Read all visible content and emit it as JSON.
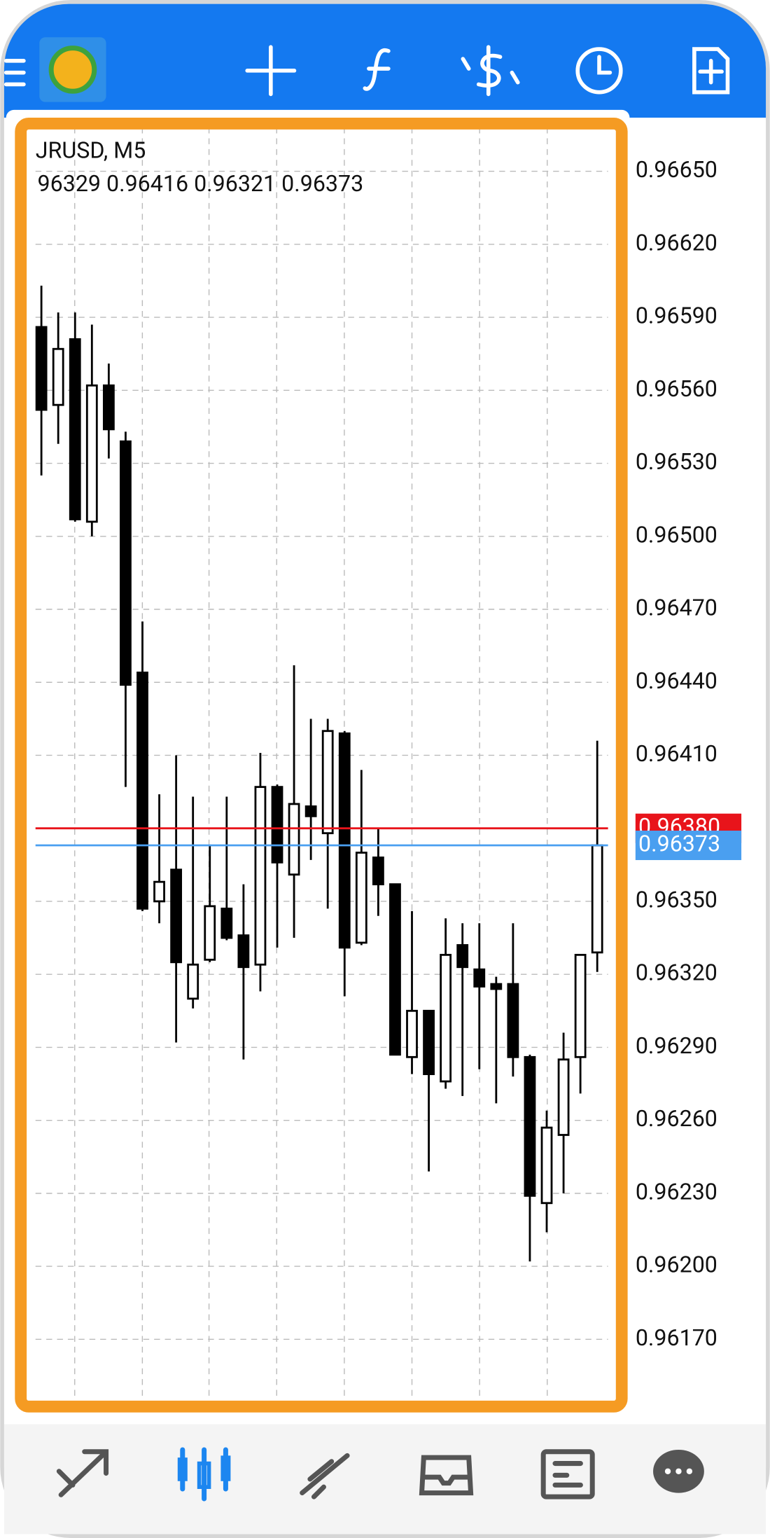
{
  "chart_data": {
    "type": "candlestick",
    "title": "JRUSD, M5",
    "info": "96329 0.96416 0.96321 0.96373",
    "open": [
      0.96586,
      0.96554,
      0.96581,
      0.96506,
      0.96562,
      0.96539,
      0.96444,
      0.9635,
      0.96363,
      0.9631,
      0.96326,
      0.96347,
      0.96336,
      0.96324,
      0.96397,
      0.96361,
      0.96389,
      0.96378,
      0.96419,
      0.96333,
      0.96368,
      0.96357,
      0.96286,
      0.96305,
      0.96276,
      0.96332,
      0.96322,
      0.96316,
      0.96316,
      0.96286,
      0.96226,
      0.96254,
      0.96286,
      0.96329
    ],
    "high": [
      0.96603,
      0.96592,
      0.96592,
      0.96587,
      0.96571,
      0.96543,
      0.96465,
      0.96394,
      0.9641,
      0.96393,
      0.96373,
      0.96393,
      0.96357,
      0.96411,
      0.96398,
      0.96447,
      0.96425,
      0.96425,
      0.9642,
      0.96404,
      0.9638,
      0.96357,
      0.96346,
      0.96305,
      0.96343,
      0.96341,
      0.96341,
      0.96319,
      0.96341,
      0.96287,
      0.96264,
      0.96296,
      0.96328,
      0.96416
    ],
    "low": [
      0.96525,
      0.96538,
      0.96506,
      0.965,
      0.96532,
      0.96397,
      0.96346,
      0.96341,
      0.96292,
      0.96306,
      0.96325,
      0.96334,
      0.96285,
      0.96313,
      0.96331,
      0.96335,
      0.96367,
      0.96347,
      0.96311,
      0.96332,
      0.96344,
      0.96287,
      0.96279,
      0.96239,
      0.96273,
      0.9627,
      0.96281,
      0.96267,
      0.96278,
      0.96202,
      0.96214,
      0.9623,
      0.96271,
      0.96321
    ],
    "close": [
      0.96552,
      0.96577,
      0.96507,
      0.96562,
      0.96544,
      0.96439,
      0.96347,
      0.96358,
      0.96325,
      0.96324,
      0.96348,
      0.96335,
      0.96323,
      0.96397,
      0.96366,
      0.9639,
      0.96385,
      0.9642,
      0.96331,
      0.9637,
      0.96357,
      0.96287,
      0.96305,
      0.96279,
      0.96328,
      0.96323,
      0.96315,
      0.96314,
      0.96286,
      0.96229,
      0.96257,
      0.96285,
      0.96328,
      0.96373
    ],
    "up_color": "#ffffff",
    "down_color": "#000000",
    "ylim": [
      0.96146,
      0.96668
    ],
    "yticks": [
      {
        "value": 0.9665,
        "label": "0.96650"
      },
      {
        "value": 0.9662,
        "label": "0.96620"
      },
      {
        "value": 0.9659,
        "label": "0.96590"
      },
      {
        "value": 0.9656,
        "label": "0.96560"
      },
      {
        "value": 0.9653,
        "label": "0.96530"
      },
      {
        "value": 0.965,
        "label": "0.96500"
      },
      {
        "value": 0.9647,
        "label": "0.96470"
      },
      {
        "value": 0.9644,
        "label": "0.96440"
      },
      {
        "value": 0.9641,
        "label": "0.96410"
      },
      {
        "value": 0.9635,
        "label": "0.96350"
      },
      {
        "value": 0.9632,
        "label": "0.96320"
      },
      {
        "value": 0.9629,
        "label": "0.96290"
      },
      {
        "value": 0.9626,
        "label": "0.96260"
      },
      {
        "value": 0.9623,
        "label": "0.96230"
      },
      {
        "value": 0.962,
        "label": "0.96200"
      },
      {
        "value": 0.9617,
        "label": "0.96170"
      }
    ],
    "grid": true,
    "price_lines": [
      {
        "value": 0.9638,
        "label": "0.96380",
        "color": "#e8141b"
      },
      {
        "value": 0.96373,
        "label": "0.96373",
        "color": "#4a9ff0"
      }
    ]
  }
}
